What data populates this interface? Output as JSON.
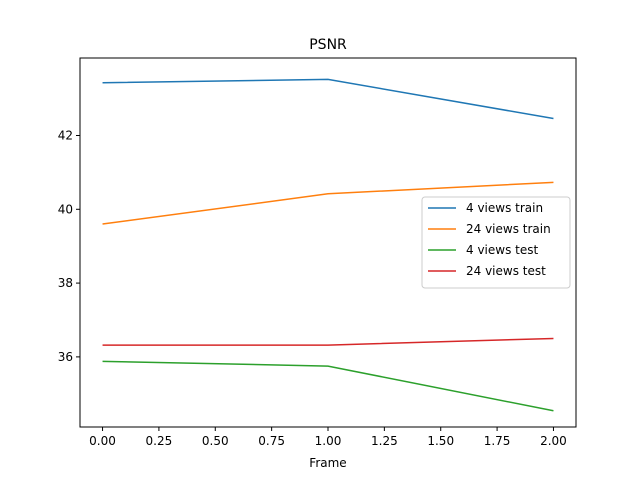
{
  "chart_data": {
    "type": "line",
    "title": "PSNR",
    "xlabel": "Frame",
    "ylabel": "",
    "xlim": [
      -0.1,
      2.1
    ],
    "ylim": [
      34.1,
      44.1
    ],
    "xticks": [
      0.0,
      0.25,
      0.5,
      0.75,
      1.0,
      1.25,
      1.5,
      1.75,
      2.0
    ],
    "xtick_labels": [
      "0.00",
      "0.25",
      "0.50",
      "0.75",
      "1.00",
      "1.25",
      "1.50",
      "1.75",
      "2.00"
    ],
    "yticks": [
      36,
      38,
      40,
      42
    ],
    "ytick_labels": [
      "36",
      "38",
      "40",
      "42"
    ],
    "grid": false,
    "legend_position": "center-right",
    "x": [
      0,
      1,
      2
    ],
    "series": [
      {
        "name": "4 views train",
        "color": "#1f77b4",
        "values": [
          43.43,
          43.52,
          42.46
        ]
      },
      {
        "name": "24 views train",
        "color": "#ff7f0e",
        "values": [
          39.6,
          40.42,
          40.73
        ]
      },
      {
        "name": "4 views test",
        "color": "#2ca02c",
        "values": [
          35.88,
          35.75,
          34.54
        ]
      },
      {
        "name": "24 views test",
        "color": "#d62728",
        "values": [
          36.32,
          36.32,
          36.5
        ]
      }
    ]
  }
}
